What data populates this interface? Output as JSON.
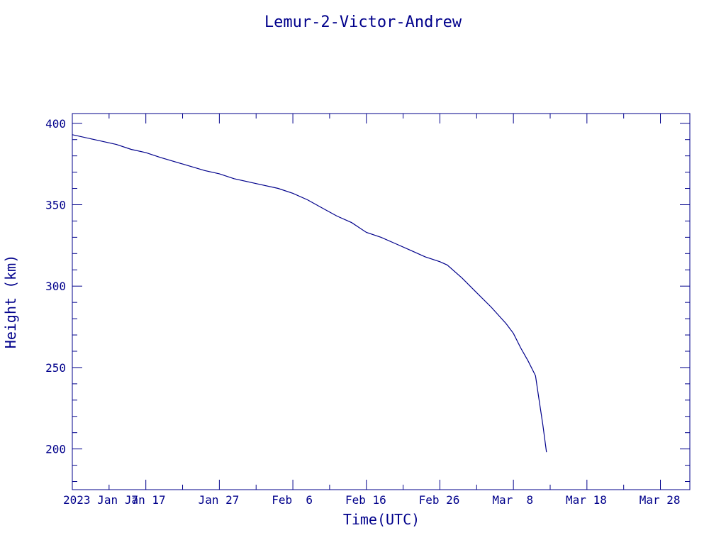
{
  "chart_data": {
    "type": "line",
    "title": "Lemur-2-Victor-Andrew",
    "xlabel": "Time(UTC)",
    "ylabel": "Height (km)",
    "color": "#00008b",
    "grid": false,
    "x_start_date": "2023-01-07",
    "xlim": [
      0,
      84
    ],
    "ylim": [
      175,
      406
    ],
    "x_ticks": [
      {
        "value": 0,
        "label": "2023 Jan  7"
      },
      {
        "value": 10,
        "label": "Jan 17"
      },
      {
        "value": 20,
        "label": "Jan 27"
      },
      {
        "value": 30,
        "label": "Feb  6"
      },
      {
        "value": 40,
        "label": "Feb 16"
      },
      {
        "value": 50,
        "label": "Feb 26"
      },
      {
        "value": 60,
        "label": "Mar  8"
      },
      {
        "value": 70,
        "label": "Mar 18"
      },
      {
        "value": 80,
        "label": "Mar 28"
      }
    ],
    "y_ticks": [
      200,
      250,
      300,
      350,
      400
    ],
    "series": [
      {
        "name": "",
        "x": [
          0,
          3,
          6,
          8,
          10,
          12,
          15,
          18,
          20,
          22,
          25,
          28,
          30,
          32,
          34,
          36,
          38,
          40,
          42,
          44,
          46,
          48,
          50,
          51,
          53,
          55,
          57,
          59,
          60,
          61,
          62,
          63,
          63.5,
          64,
          64.5
        ],
        "y": [
          393,
          390,
          387,
          384,
          382,
          379,
          375,
          371,
          369,
          366,
          363,
          360,
          357,
          353,
          348,
          343,
          339,
          333,
          330,
          326,
          322,
          318,
          315,
          313,
          305,
          296,
          287,
          277,
          271,
          262,
          254,
          245,
          230,
          215,
          198
        ]
      }
    ]
  }
}
